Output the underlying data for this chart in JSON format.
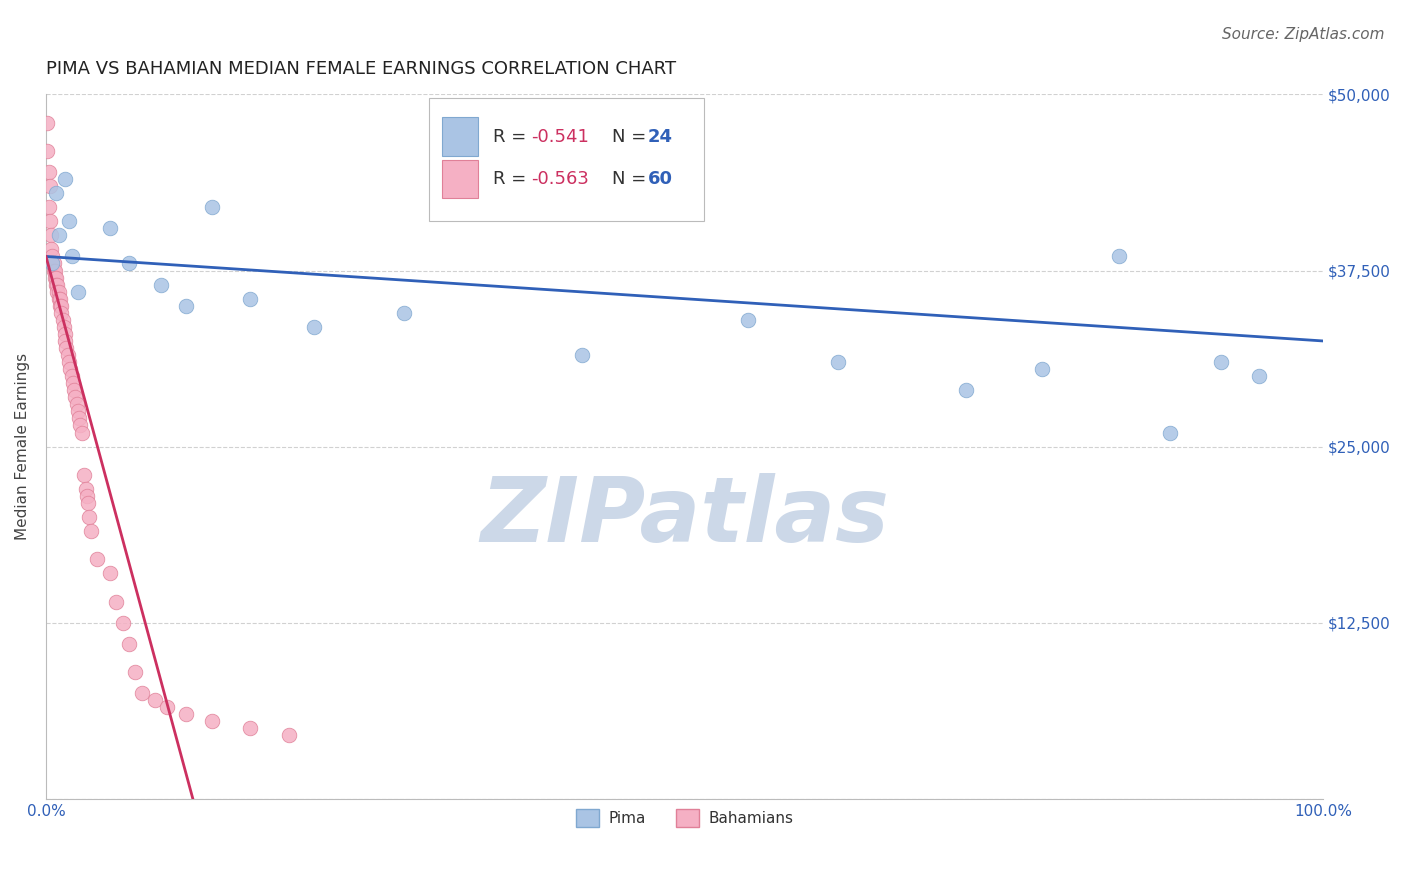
{
  "title": "PIMA VS BAHAMIAN MEDIAN FEMALE EARNINGS CORRELATION CHART",
  "source": "Source: ZipAtlas.com",
  "ylabel": "Median Female Earnings",
  "xlim": [
    0,
    1.0
  ],
  "ylim": [
    0,
    50000
  ],
  "xticks": [
    0.0,
    0.25,
    0.5,
    0.75,
    1.0
  ],
  "xticklabels": [
    "0.0%",
    "",
    "",
    "",
    "100.0%"
  ],
  "yticks": [
    0,
    12500,
    25000,
    37500,
    50000
  ],
  "yticklabels_right": [
    "",
    "$12,500",
    "$25,000",
    "$37,500",
    "$50,000"
  ],
  "background_color": "#ffffff",
  "grid_color": "#cccccc",
  "pima_color": "#aac4e4",
  "pima_edge_color": "#80a8d0",
  "bahamian_color": "#f5b0c4",
  "bahamian_edge_color": "#e08098",
  "blue_line_color": "#3060b8",
  "pink_line_color": "#cc3060",
  "R_label_color": "#333333",
  "R_value_color": "#cc3060",
  "N_label_color": "#333333",
  "N_value_color": "#3060b8",
  "R_pima": "-0.541",
  "N_pima": "24",
  "R_bahamian": "-0.563",
  "N_bahamian": "60",
  "pima_x": [
    0.005,
    0.008,
    0.01,
    0.015,
    0.018,
    0.02,
    0.025,
    0.05,
    0.065,
    0.09,
    0.11,
    0.13,
    0.16,
    0.21,
    0.28,
    0.42,
    0.55,
    0.62,
    0.72,
    0.78,
    0.84,
    0.88,
    0.92,
    0.95
  ],
  "pima_y": [
    38000,
    43000,
    40000,
    44000,
    41000,
    38500,
    36000,
    40500,
    38000,
    36500,
    35000,
    42000,
    35500,
    33500,
    34500,
    31500,
    34000,
    31000,
    29000,
    30500,
    38500,
    26000,
    31000,
    30000
  ],
  "bahamian_x": [
    0.001,
    0.001,
    0.002,
    0.002,
    0.003,
    0.003,
    0.004,
    0.004,
    0.005,
    0.005,
    0.006,
    0.006,
    0.007,
    0.007,
    0.008,
    0.008,
    0.009,
    0.009,
    0.01,
    0.01,
    0.011,
    0.011,
    0.012,
    0.012,
    0.013,
    0.014,
    0.015,
    0.015,
    0.016,
    0.017,
    0.018,
    0.019,
    0.02,
    0.021,
    0.022,
    0.023,
    0.024,
    0.025,
    0.026,
    0.027,
    0.028,
    0.03,
    0.031,
    0.032,
    0.033,
    0.034,
    0.035,
    0.04,
    0.05,
    0.055,
    0.06,
    0.065,
    0.07,
    0.075,
    0.085,
    0.095,
    0.11,
    0.13,
    0.16,
    0.19
  ],
  "bahamian_y": [
    48000,
    46000,
    44500,
    42000,
    43500,
    41000,
    40000,
    39000,
    38500,
    38000,
    38000,
    37500,
    37500,
    37000,
    37000,
    36500,
    36500,
    36000,
    36000,
    35500,
    35500,
    35000,
    35000,
    34500,
    34000,
    33500,
    33000,
    32500,
    32000,
    31500,
    31000,
    30500,
    30000,
    29500,
    29000,
    28500,
    28000,
    27500,
    27000,
    26500,
    26000,
    23000,
    22000,
    21500,
    21000,
    20000,
    19000,
    17000,
    16000,
    14000,
    12500,
    11000,
    9000,
    7500,
    7000,
    6500,
    6000,
    5500,
    5000,
    4500
  ],
  "blue_line_x": [
    0.0,
    1.0
  ],
  "blue_line_y": [
    38500,
    32500
  ],
  "pink_line_x": [
    0.0,
    0.115
  ],
  "pink_line_y": [
    38500,
    0
  ],
  "watermark": "ZIPatlas",
  "watermark_color": "#ccd8e8",
  "title_fontsize": 13,
  "axis_label_fontsize": 11,
  "tick_fontsize": 11,
  "legend_fontsize": 13,
  "source_fontsize": 11,
  "scatter_size": 110
}
